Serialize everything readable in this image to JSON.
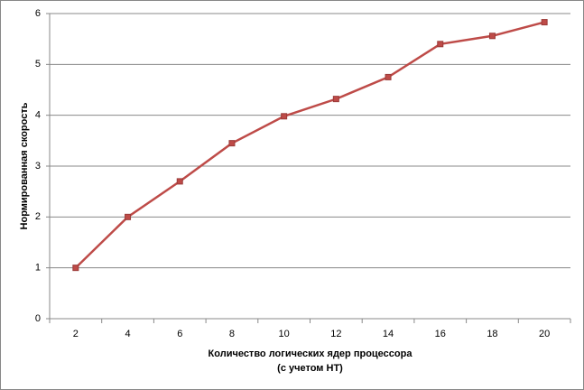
{
  "chart_data": {
    "type": "line",
    "x_label": [
      "Количество  логических ядер процессора",
      "(с учетом HT)"
    ],
    "y_label": "Нормированная  скорость",
    "categories": [
      "2",
      "4",
      "6",
      "8",
      "10",
      "12",
      "14",
      "16",
      "18",
      "20"
    ],
    "series": [
      {
        "color": "#be4b48",
        "values": [
          1,
          2,
          2.7,
          3.45,
          3.98,
          4.32,
          4.75,
          5.4,
          5.56,
          5.83
        ]
      }
    ],
    "ylim": [
      0,
      6
    ],
    "yticks": [
      0,
      1,
      2,
      3,
      4,
      5,
      6
    ],
    "grid": true
  }
}
